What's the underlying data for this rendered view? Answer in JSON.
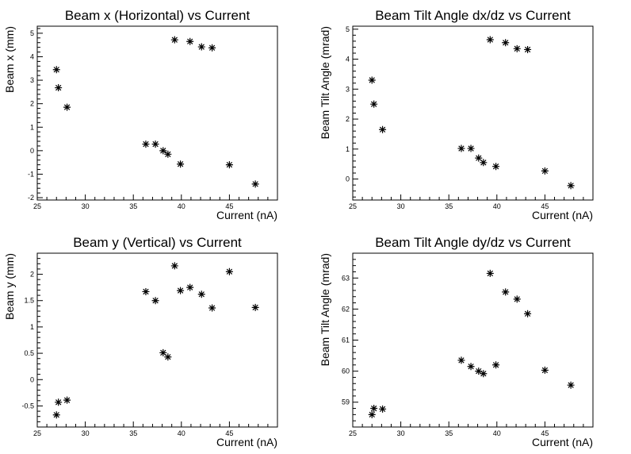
{
  "chart_data": [
    {
      "type": "scatter",
      "title": "Beam x (Horizontal) vs Current",
      "xlabel": "Current (nA)",
      "ylabel": "Beam x (mm)",
      "xlim": [
        25,
        50
      ],
      "ylim": [
        -2.1,
        5.3
      ],
      "xticks": [
        "25",
        "30",
        "35",
        "40",
        "45"
      ],
      "yticks": [
        "-2",
        "-1",
        "0",
        "1",
        "2",
        "3",
        "4",
        "5"
      ],
      "marker": "asterisk",
      "x": [
        27.0,
        27.2,
        28.1,
        36.3,
        37.3,
        38.1,
        38.6,
        39.3,
        39.9,
        40.9,
        42.1,
        43.2,
        45.0,
        47.7
      ],
      "y": [
        3.45,
        2.68,
        1.85,
        0.28,
        0.28,
        0.0,
        -0.15,
        4.72,
        -0.57,
        4.65,
        4.42,
        4.38,
        -0.6,
        -1.42
      ]
    },
    {
      "type": "scatter",
      "title": "Beam Tilt Angle dx/dz vs Current",
      "xlabel": "Current (nA)",
      "ylabel": "Beam Tilt Angle (mrad)",
      "xlim": [
        25,
        50
      ],
      "ylim": [
        -0.7,
        5.1
      ],
      "xticks": [
        "25",
        "30",
        "35",
        "40",
        "45"
      ],
      "yticks": [
        "0",
        "1",
        "2",
        "3",
        "4",
        "5"
      ],
      "marker": "asterisk",
      "x": [
        27.0,
        27.2,
        28.1,
        36.3,
        37.3,
        38.1,
        38.6,
        39.3,
        39.9,
        40.9,
        42.1,
        43.2,
        45.0,
        47.7
      ],
      "y": [
        3.3,
        2.5,
        1.65,
        1.02,
        1.02,
        0.7,
        0.55,
        4.65,
        0.42,
        4.55,
        4.35,
        4.32,
        0.27,
        -0.22
      ]
    },
    {
      "type": "scatter",
      "title": "Beam y (Vertical) vs Current",
      "xlabel": "Current (nA)",
      "ylabel": "Beam y (mm)",
      "xlim": [
        25,
        50
      ],
      "ylim": [
        -0.9,
        2.4
      ],
      "xticks": [
        "25",
        "30",
        "35",
        "40",
        "45"
      ],
      "yticks": [
        "-0.5",
        "0",
        "0.5",
        "1",
        "1.5",
        "2"
      ],
      "marker": "asterisk",
      "x": [
        27.0,
        27.2,
        28.1,
        36.3,
        37.3,
        38.1,
        38.6,
        39.3,
        39.9,
        40.9,
        42.1,
        43.2,
        45.0,
        47.7
      ],
      "y": [
        -0.67,
        -0.43,
        -0.39,
        1.67,
        1.5,
        0.51,
        0.43,
        2.16,
        1.69,
        1.75,
        1.62,
        1.36,
        2.05,
        1.37
      ]
    },
    {
      "type": "scatter",
      "title": "Beam Tilt Angle dy/dz vs Current",
      "xlabel": "Current (nA)",
      "ylabel": "Beam Tilt Angle (mrad)",
      "xlim": [
        25,
        50
      ],
      "ylim": [
        58.2,
        63.8
      ],
      "xticks": [
        "25",
        "30",
        "35",
        "40",
        "45"
      ],
      "yticks": [
        "59",
        "60",
        "61",
        "62",
        "63"
      ],
      "marker": "asterisk",
      "x": [
        27.0,
        27.2,
        28.1,
        36.3,
        37.3,
        38.1,
        38.6,
        39.3,
        39.9,
        40.9,
        42.1,
        43.2,
        45.0,
        47.7
      ],
      "y": [
        58.6,
        58.8,
        58.78,
        60.35,
        60.15,
        60.0,
        59.92,
        63.15,
        60.2,
        62.55,
        62.32,
        61.85,
        60.03,
        59.55
      ]
    }
  ]
}
